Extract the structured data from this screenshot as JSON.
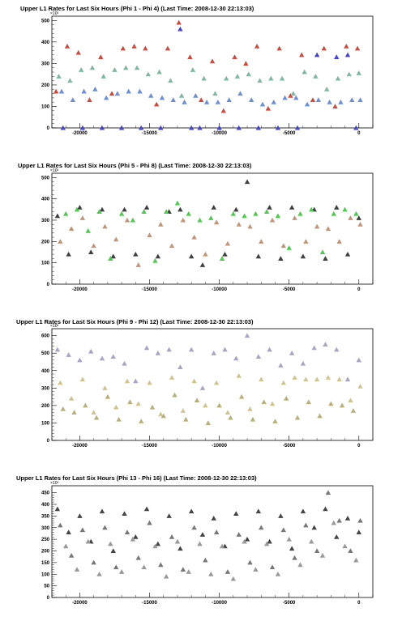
{
  "chart_data": [
    {
      "type": "scatter",
      "title": "Upper L1 Rates for Last Six Hours (Phi 1 - Phi 4) (Last Time: 2008-12-30 22:13:03)",
      "y_exponent": "×10³",
      "xlim": [
        -22000,
        1000
      ],
      "ylim": [
        0,
        520
      ],
      "x_ticks": [
        -20000,
        -15000,
        -10000,
        -5000,
        0
      ],
      "y_ticks": [
        0,
        100,
        200,
        300,
        400,
        500
      ],
      "marker": "triangle",
      "series": [
        {
          "color": "#cc4a3f",
          "x": [
            -21700,
            -20900,
            -20100,
            -19300,
            -18500,
            -17700,
            -16900,
            -16100,
            -15300,
            -14500,
            -13700,
            -12900,
            -12100,
            -11300,
            -10500,
            -9700,
            -8900,
            -8100,
            -7300,
            -6500,
            -5700,
            -4900,
            -4100,
            -3300,
            -2500,
            -1700,
            -900,
            -100
          ],
          "y": [
            170,
            380,
            350,
            130,
            330,
            160,
            370,
            380,
            370,
            110,
            370,
            490,
            330,
            130,
            310,
            80,
            330,
            300,
            380,
            90,
            370,
            150,
            340,
            130,
            370,
            100,
            380,
            370
          ]
        },
        {
          "color": "#7fb8a0",
          "x": [
            -21500,
            -20700,
            -19900,
            -19100,
            -18300,
            -17500,
            -16700,
            -15900,
            -15100,
            -14300,
            -13500,
            -12700,
            -11900,
            -11100,
            -10300,
            -9500,
            -8700,
            -7900,
            -7100,
            -6300,
            -5500,
            -4700,
            -3900,
            -3100,
            -2300,
            -1500,
            -700,
            0
          ],
          "y": [
            240,
            220,
            270,
            280,
            240,
            270,
            280,
            280,
            250,
            260,
            220,
            150,
            270,
            230,
            160,
            230,
            240,
            250,
            220,
            230,
            230,
            160,
            260,
            240,
            180,
            230,
            250,
            255
          ]
        },
        {
          "color": "#6e8fd4",
          "x": [
            -21300,
            -20500,
            -19700,
            -18900,
            -18100,
            -17300,
            -16500,
            -15700,
            -14900,
            -14100,
            -13300,
            -12500,
            -11700,
            -10900,
            -10100,
            -9300,
            -8500,
            -7700,
            -6900,
            -6100,
            -5300,
            -4500,
            -3700,
            -2900,
            -2100,
            -1300,
            -500,
            100
          ],
          "y": [
            170,
            130,
            170,
            180,
            140,
            160,
            170,
            170,
            150,
            140,
            130,
            120,
            150,
            120,
            120,
            130,
            160,
            130,
            110,
            120,
            140,
            140,
            110,
            130,
            120,
            120,
            130,
            130
          ]
        },
        {
          "color": "#4444cc",
          "x": [
            -21200,
            -19800,
            -18400,
            -17000,
            -15600,
            -14200,
            -12800,
            -12000,
            -11400,
            -10000,
            -8600,
            -7200,
            -5800,
            -4400,
            -3000,
            -1600,
            -800,
            -200
          ],
          "y": [
            0,
            0,
            0,
            0,
            0,
            0,
            460,
            0,
            0,
            0,
            0,
            0,
            0,
            0,
            340,
            330,
            340,
            0
          ]
        }
      ]
    },
    {
      "type": "scatter",
      "title": "Upper L1 Rates for Last Six Hours (Phi 5 - Phi 8) (Last Time: 2008-12-30 22:13:03)",
      "y_exponent": "×10³",
      "xlim": [
        -22000,
        1000
      ],
      "ylim": [
        0,
        520
      ],
      "x_ticks": [
        -20000,
        -15000,
        -10000,
        -5000,
        0
      ],
      "y_ticks": [
        0,
        100,
        200,
        300,
        400,
        500
      ],
      "marker": "triangle",
      "series": [
        {
          "color": "#3f3f3f",
          "x": [
            -21600,
            -20800,
            -20000,
            -19200,
            -18400,
            -17600,
            -16800,
            -16000,
            -15200,
            -14400,
            -13600,
            -12800,
            -12000,
            -11200,
            -10400,
            -9600,
            -8800,
            -8000,
            -7200,
            -6400,
            -5600,
            -4800,
            -4000,
            -3200,
            -2400,
            -1600,
            -800,
            0
          ],
          "y": [
            320,
            140,
            360,
            150,
            350,
            130,
            350,
            140,
            360,
            130,
            340,
            350,
            130,
            90,
            360,
            140,
            350,
            480,
            130,
            360,
            120,
            360,
            130,
            350,
            120,
            360,
            140,
            310
          ]
        },
        {
          "color": "#c0957a",
          "x": [
            -21400,
            -20600,
            -19800,
            -19000,
            -18200,
            -17400,
            -16600,
            -15800,
            -15000,
            -14200,
            -13400,
            -12600,
            -11800,
            -11000,
            -10200,
            -9400,
            -8600,
            -7800,
            -7000,
            -6200,
            -5400,
            -4600,
            -3800,
            -3000,
            -2200,
            -1400,
            -600,
            100
          ],
          "y": [
            200,
            260,
            310,
            180,
            270,
            210,
            300,
            90,
            230,
            280,
            180,
            300,
            220,
            140,
            290,
            190,
            280,
            270,
            200,
            300,
            180,
            310,
            200,
            270,
            260,
            200,
            310,
            280
          ]
        },
        {
          "color": "#4fc94f",
          "x": [
            -21000,
            -20200,
            -19400,
            -18600,
            -17800,
            -17000,
            -16200,
            -15400,
            -14600,
            -13800,
            -13000,
            -12200,
            -11400,
            -10600,
            -9800,
            -9000,
            -8200,
            -7400,
            -6600,
            -5800,
            -5000,
            -4200,
            -3400,
            -2600,
            -1800,
            -1000,
            -200
          ],
          "y": [
            330,
            350,
            250,
            340,
            120,
            330,
            300,
            340,
            110,
            340,
            380,
            330,
            300,
            310,
            120,
            330,
            320,
            330,
            340,
            320,
            170,
            330,
            350,
            150,
            330,
            350,
            330
          ]
        }
      ]
    },
    {
      "type": "scatter",
      "title": "Upper L1 Rates for Last Six Hours (Phi 9 - Phi 12) (Last Time: 2008-12-30 22:13:03)",
      "y_exponent": "×10³",
      "xlim": [
        -22000,
        1000
      ],
      "ylim": [
        0,
        640
      ],
      "x_ticks": [
        -20000,
        -15000,
        -10000,
        -5000,
        0
      ],
      "y_ticks": [
        0,
        100,
        200,
        300,
        400,
        500,
        600
      ],
      "marker": "triangle",
      "series": [
        {
          "color": "#a9a4c4",
          "x": [
            -21600,
            -20800,
            -20000,
            -19200,
            -18400,
            -17600,
            -16800,
            -16000,
            -15200,
            -14400,
            -13600,
            -12800,
            -12000,
            -11200,
            -10400,
            -9600,
            -8800,
            -8000,
            -7200,
            -6400,
            -5600,
            -4800,
            -4000,
            -3200,
            -2400,
            -1600,
            -800,
            0
          ],
          "y": [
            520,
            490,
            460,
            510,
            470,
            480,
            440,
            340,
            530,
            500,
            520,
            420,
            520,
            300,
            500,
            520,
            470,
            600,
            480,
            520,
            430,
            500,
            440,
            530,
            550,
            520,
            350,
            460
          ]
        },
        {
          "color": "#cfc590",
          "x": [
            -21400,
            -20600,
            -19800,
            -19000,
            -18200,
            -17400,
            -16600,
            -15800,
            -15000,
            -14200,
            -13400,
            -12600,
            -11800,
            -11000,
            -10200,
            -9400,
            -8600,
            -7800,
            -7000,
            -6200,
            -5400,
            -4600,
            -3800,
            -3000,
            -2200,
            -1400,
            -600,
            100
          ],
          "y": [
            330,
            240,
            350,
            160,
            300,
            190,
            340,
            210,
            330,
            150,
            360,
            170,
            340,
            200,
            330,
            160,
            370,
            180,
            350,
            210,
            330,
            360,
            350,
            350,
            360,
            350,
            230,
            310
          ]
        },
        {
          "color": "#b8b07a",
          "x": [
            -21200,
            -20400,
            -19600,
            -18800,
            -18000,
            -17200,
            -16400,
            -15600,
            -14800,
            -14000,
            -13200,
            -12400,
            -11600,
            -10800,
            -10000,
            -9200,
            -8400,
            -7600,
            -6800,
            -6000,
            -5200,
            -4400,
            -3600,
            -2800,
            -2000,
            -1200,
            -400
          ],
          "y": [
            180,
            160,
            200,
            130,
            250,
            120,
            220,
            110,
            190,
            140,
            260,
            120,
            230,
            100,
            200,
            130,
            250,
            120,
            220,
            110,
            240,
            130,
            220,
            140,
            210,
            200,
            170
          ]
        }
      ]
    },
    {
      "type": "scatter",
      "title": "Upper L1 Rates for Last Six Hours (Phi 13 - Phi 16) (Last Time: 2008-12-30 22:13:03)",
      "y_exponent": "×10³",
      "xlim": [
        -22000,
        1000
      ],
      "ylim": [
        0,
        480
      ],
      "x_ticks": [
        -20000,
        -15000,
        -10000,
        -5000,
        0
      ],
      "y_ticks": [
        0,
        50,
        100,
        150,
        200,
        250,
        300,
        350,
        400,
        450
      ],
      "marker": "triangle",
      "series": [
        {
          "color": "#444444",
          "x": [
            -21600,
            -20800,
            -20000,
            -19200,
            -18400,
            -17600,
            -16800,
            -16000,
            -15200,
            -14400,
            -13600,
            -12800,
            -12000,
            -11200,
            -10400,
            -9600,
            -8800,
            -8000,
            -7200,
            -6400,
            -5600,
            -4800,
            -4000,
            -3200,
            -2400,
            -1600,
            -800,
            0
          ],
          "y": [
            380,
            280,
            350,
            240,
            370,
            200,
            360,
            260,
            380,
            230,
            350,
            210,
            370,
            270,
            340,
            220,
            360,
            250,
            370,
            240,
            350,
            210,
            370,
            300,
            380,
            260,
            340,
            280
          ]
        },
        {
          "color": "#777777",
          "x": [
            -21400,
            -20600,
            -19800,
            -19000,
            -18200,
            -17400,
            -16600,
            -15800,
            -15000,
            -14200,
            -13400,
            -12600,
            -11800,
            -11000,
            -10200,
            -9400,
            -8600,
            -7800,
            -7000,
            -6200,
            -5400,
            -4600,
            -3800,
            -3000,
            -2200,
            -1400,
            -600,
            100
          ],
          "y": [
            310,
            180,
            290,
            150,
            300,
            130,
            280,
            170,
            320,
            140,
            260,
            120,
            300,
            160,
            280,
            110,
            270,
            150,
            300,
            130,
            290,
            170,
            310,
            200,
            450,
            330,
            200,
            330
          ]
        },
        {
          "color": "#999999",
          "x": [
            -21000,
            -20200,
            -19400,
            -18600,
            -17800,
            -17000,
            -16200,
            -15400,
            -14600,
            -13800,
            -13000,
            -12200,
            -11400,
            -10600,
            -9800,
            -9000,
            -8200,
            -7400,
            -6600,
            -5800,
            -5000,
            -4200,
            -3400,
            -2600,
            -1800,
            -1000,
            -200
          ],
          "y": [
            220,
            120,
            240,
            100,
            230,
            110,
            250,
            130,
            220,
            90,
            240,
            110,
            230,
            100,
            220,
            80,
            240,
            120,
            230,
            100,
            250,
            140,
            240,
            180,
            320,
            220,
            160
          ]
        }
      ]
    }
  ]
}
